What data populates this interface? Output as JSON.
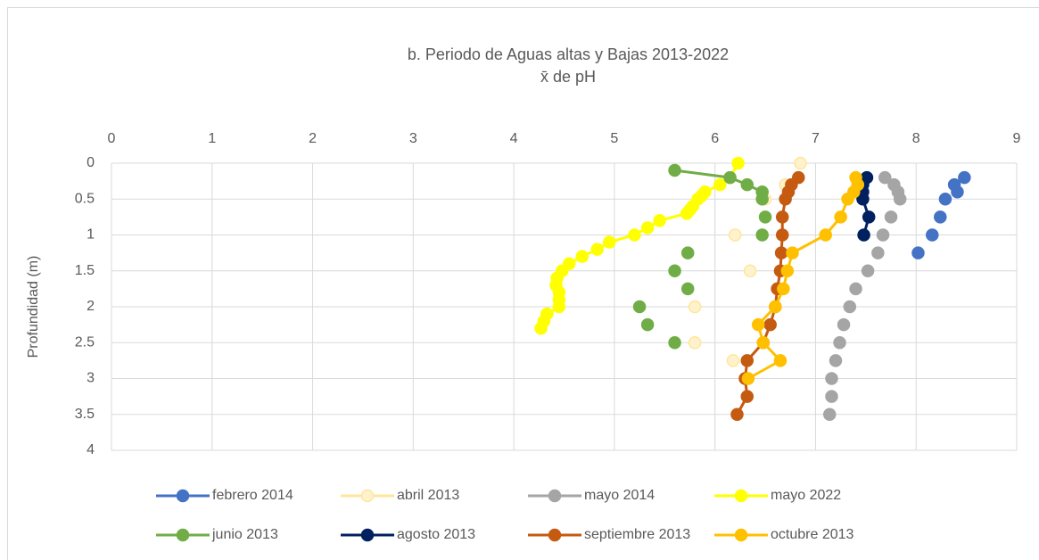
{
  "chart_data": {
    "type": "scatter",
    "title": "b. Periodo de Aguas altas y Bajas 2013-2022",
    "subtitle": "x̄ de pH",
    "y_label": "Profundidad (m)",
    "xlim": [
      0,
      9
    ],
    "xticks": [
      0,
      1,
      2,
      3,
      4,
      5,
      6,
      7,
      8,
      9
    ],
    "ylim": [
      0,
      4
    ],
    "yticks": [
      0,
      0.5,
      1,
      1.5,
      2,
      2.5,
      3,
      3.5,
      4
    ],
    "y_inverted": true,
    "x_axis_position": "top",
    "grid": true,
    "legend": "bottom",
    "series": [
      {
        "name": "febrero 2014",
        "color": "#4472c4",
        "x": [
          8.48,
          null,
          8.38,
          null,
          8.41,
          null,
          8.29,
          null,
          8.24,
          null,
          8.16,
          null,
          8.02
        ],
        "y": [
          0.2,
          null,
          0.3,
          null,
          0.4,
          null,
          0.5,
          null,
          0.75,
          null,
          1,
          null,
          1.25
        ]
      },
      {
        "name": "abril 2013",
        "color": "#ffe699",
        "marker_fill": "#fff2cc",
        "x": [
          6.85,
          null,
          6.7,
          null,
          6.5,
          null,
          6.2,
          null,
          6.35,
          null,
          5.8,
          null,
          5.8,
          null,
          6.18
        ],
        "y": [
          0,
          null,
          0.3,
          null,
          0.5,
          null,
          1,
          null,
          1.5,
          null,
          2,
          null,
          2.5,
          null,
          2.75
        ]
      },
      {
        "name": "mayo 2014",
        "color": "#a5a5a5",
        "x": [
          7.69,
          null,
          7.78,
          null,
          7.82,
          null,
          7.84,
          null,
          7.75,
          null,
          7.67,
          null,
          7.62,
          null,
          7.52,
          null,
          7.4,
          null,
          7.34,
          null,
          7.28,
          null,
          7.24,
          null,
          7.2,
          null,
          7.16,
          null,
          7.16,
          null,
          7.14
        ],
        "y": [
          0.2,
          null,
          0.3,
          null,
          0.4,
          null,
          0.5,
          null,
          0.75,
          null,
          1,
          null,
          1.25,
          null,
          1.5,
          null,
          1.75,
          null,
          2,
          null,
          2.25,
          null,
          2.5,
          null,
          2.75,
          null,
          3,
          null,
          3.25,
          null,
          3.5
        ]
      },
      {
        "name": "mayo 2022",
        "color": "#ffff00",
        "x": [
          6.23,
          6.15,
          6.05,
          5.9,
          5.87,
          5.83,
          5.78,
          5.75,
          5.72,
          5.45,
          5.33,
          5.2,
          4.95,
          4.83,
          4.68,
          4.55,
          4.48,
          4.43,
          4.42,
          4.45,
          4.45,
          4.45,
          4.33,
          4.3,
          4.27
        ],
        "y": [
          0,
          0.2,
          0.3,
          0.4,
          0.45,
          0.5,
          0.6,
          0.65,
          0.7,
          0.8,
          0.9,
          1,
          1.1,
          1.2,
          1.3,
          1.4,
          1.5,
          1.6,
          1.7,
          1.8,
          1.9,
          2,
          2.1,
          2.2,
          2.3
        ]
      },
      {
        "name": "junio 2013",
        "color": "#70ad47",
        "x": [
          5.6,
          6.15,
          6.32,
          6.47,
          6.47,
          null,
          6.5,
          null,
          6.47,
          null,
          5.73,
          null,
          5.6,
          null,
          5.73,
          null,
          5.25,
          null,
          5.33,
          null,
          5.6
        ],
        "y": [
          0.1,
          0.2,
          0.3,
          0.4,
          0.5,
          null,
          0.75,
          null,
          1,
          null,
          1.25,
          null,
          1.5,
          null,
          1.75,
          null,
          2,
          null,
          2.25,
          null,
          2.5
        ]
      },
      {
        "name": "agosto 2013",
        "color": "#002060",
        "x": [
          7.51,
          7.47,
          7.47,
          7.47,
          7.53,
          7.48
        ],
        "y": [
          0.2,
          0.3,
          0.4,
          0.5,
          0.75,
          1
        ]
      },
      {
        "name": "septiembre 2013",
        "color": "#c55a11",
        "x": [
          6.83,
          6.76,
          6.73,
          6.7,
          6.67,
          6.67,
          6.66,
          6.65,
          6.62,
          6.6,
          6.55,
          6.48,
          6.32,
          6.3,
          6.32,
          6.22
        ],
        "y": [
          0.2,
          0.3,
          0.4,
          0.5,
          0.75,
          1,
          1.25,
          1.5,
          1.75,
          2,
          2.25,
          2.5,
          2.75,
          3,
          3.25,
          3.5
        ]
      },
      {
        "name": "octubre 2013",
        "color": "#ffc000",
        "x": [
          7.4,
          7.42,
          7.38,
          7.32,
          7.25,
          7.1,
          6.77,
          6.72,
          6.68,
          6.6,
          6.43,
          6.48,
          6.65,
          6.33
        ],
        "y": [
          0.2,
          0.3,
          0.4,
          0.5,
          0.75,
          1,
          1.25,
          1.5,
          1.75,
          2,
          2.25,
          2.5,
          2.75,
          3
        ]
      }
    ]
  }
}
